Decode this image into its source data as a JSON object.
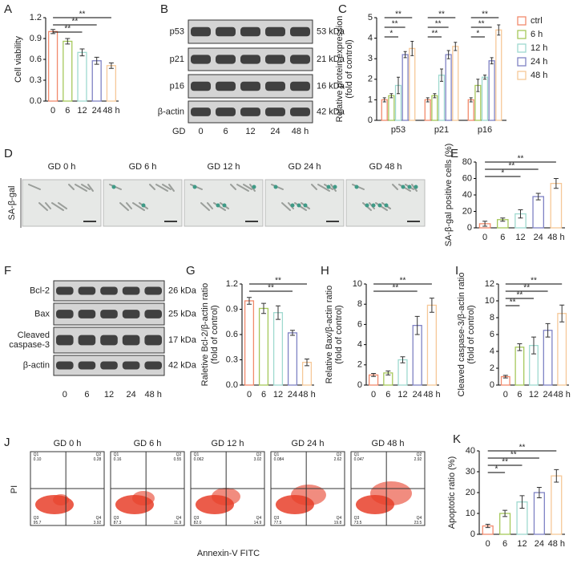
{
  "chart_data": [
    {
      "type": "bar",
      "panel": "A",
      "y_label": [
        "Cell viability"
      ],
      "categories": [
        "0",
        "6",
        "12",
        "24",
        "48 h"
      ],
      "values": [
        1.0,
        0.86,
        0.7,
        0.58,
        0.51
      ],
      "errors": [
        0.03,
        0.04,
        0.05,
        0.05,
        0.04
      ],
      "colors": [
        "#f28a6c",
        "#a6c85b",
        "#9fd9cf",
        "#7f82c4",
        "#f6c898"
      ],
      "ylim": [
        0,
        1.2
      ],
      "yticks": [
        {
          "value": 0,
          "label": "0.0"
        },
        0.3,
        0.6,
        0.9,
        1.2
      ],
      "significance": [
        {
          "from": 0,
          "to": 4,
          "label": "**"
        },
        {
          "from": 0,
          "to": 3,
          "label": "**"
        },
        {
          "from": 0,
          "to": 2,
          "label": "**"
        }
      ]
    },
    {
      "type": "grouped_bar",
      "panel": "C",
      "y_label": [
        "Relative protein expression",
        "(fold of control)"
      ],
      "categories": [
        "p53",
        "p21",
        "p16"
      ],
      "series": [
        {
          "name": "ctrl",
          "color": "#f28a6c",
          "values": [
            1.0,
            1.0,
            1.0
          ],
          "errors": [
            0.1,
            0.1,
            0.1
          ]
        },
        {
          "name": "6 h",
          "color": "#a6c85b",
          "values": [
            1.2,
            1.2,
            1.7
          ],
          "errors": [
            0.1,
            0.1,
            0.3
          ]
        },
        {
          "name": "12 h",
          "color": "#9fd9cf",
          "values": [
            1.7,
            2.2,
            2.1
          ],
          "errors": [
            0.4,
            0.3,
            0.1
          ]
        },
        {
          "name": "24 h",
          "color": "#7f82c4",
          "values": [
            3.2,
            3.2,
            2.9
          ],
          "errors": [
            0.15,
            0.2,
            0.15
          ]
        },
        {
          "name": "48 h",
          "color": "#f6c898",
          "values": [
            3.5,
            3.6,
            4.4
          ],
          "errors": [
            0.35,
            0.2,
            0.25
          ]
        }
      ],
      "ylim": [
        0,
        5
      ],
      "yticks": [
        0,
        1,
        2,
        3,
        4,
        5
      ],
      "significance": [
        {
          "group": 0,
          "from": 0,
          "to": 4,
          "label": "**"
        },
        {
          "group": 0,
          "from": 0,
          "to": 3,
          "label": "**"
        },
        {
          "group": 0,
          "from": 0,
          "to": 2,
          "label": "*"
        },
        {
          "group": 1,
          "from": 0,
          "to": 4,
          "label": "**"
        },
        {
          "group": 1,
          "from": 0,
          "to": 3,
          "label": "**"
        },
        {
          "group": 1,
          "from": 0,
          "to": 2,
          "label": "**"
        },
        {
          "group": 2,
          "from": 0,
          "to": 4,
          "label": "**"
        },
        {
          "group": 2,
          "from": 0,
          "to": 3,
          "label": "**"
        },
        {
          "group": 2,
          "from": 0,
          "to": 2,
          "label": "*"
        }
      ]
    },
    {
      "type": "bar",
      "panel": "E",
      "y_label": [
        "SA-β-gal positive cells (%)"
      ],
      "categories": [
        "0",
        "6",
        "12",
        "24",
        "48 h"
      ],
      "values": [
        5,
        10,
        17,
        38,
        54
      ],
      "errors": [
        3,
        2,
        5,
        4,
        6
      ],
      "colors": [
        "#f28a6c",
        "#a6c85b",
        "#9fd9cf",
        "#7f82c4",
        "#f6c898"
      ],
      "ylim": [
        0,
        80
      ],
      "yticks": [
        0,
        20,
        40,
        60,
        80
      ],
      "significance": [
        {
          "from": 0,
          "to": 4,
          "label": "**"
        },
        {
          "from": 0,
          "to": 3,
          "label": "**"
        },
        {
          "from": 0,
          "to": 2,
          "label": "*"
        }
      ]
    },
    {
      "type": "bar",
      "panel": "G",
      "y_label": [
        "Raletive Bcl-2/β-actin ratio",
        "(fold of control)"
      ],
      "categories": [
        "0",
        "6",
        "12",
        "24",
        "48 h"
      ],
      "values": [
        1.0,
        0.91,
        0.86,
        0.62,
        0.27
      ],
      "errors": [
        0.04,
        0.06,
        0.08,
        0.03,
        0.04
      ],
      "colors": [
        "#f28a6c",
        "#a6c85b",
        "#9fd9cf",
        "#7f82c4",
        "#f6c898"
      ],
      "ylim": [
        0,
        1.2
      ],
      "yticks": [
        {
          "value": 0,
          "label": "0.0"
        },
        0.3,
        0.6,
        0.9,
        1.2
      ],
      "significance": [
        {
          "from": 0,
          "to": 4,
          "label": "**"
        },
        {
          "from": 0,
          "to": 3,
          "label": "**"
        }
      ]
    },
    {
      "type": "bar",
      "panel": "H",
      "y_label": [
        "Relative Bax/β-actin ratio",
        "(fold of control)"
      ],
      "categories": [
        "0",
        "6",
        "12",
        "24",
        "48 h"
      ],
      "values": [
        1.0,
        1.2,
        2.5,
        5.9,
        7.9
      ],
      "errors": [
        0.15,
        0.2,
        0.3,
        0.9,
        0.7
      ],
      "colors": [
        "#f28a6c",
        "#a6c85b",
        "#9fd9cf",
        "#7f82c4",
        "#f6c898"
      ],
      "ylim": [
        0,
        10
      ],
      "yticks": [
        0,
        2,
        4,
        6,
        8,
        10
      ],
      "significance": [
        {
          "from": 0,
          "to": 4,
          "label": "**"
        },
        {
          "from": 0,
          "to": 3,
          "label": "**"
        }
      ]
    },
    {
      "type": "bar",
      "panel": "I",
      "y_label": [
        "Cleaved caspase-3/β-actin ratio",
        "(fold of control)"
      ],
      "categories": [
        "0",
        "6",
        "12",
        "24",
        "48 h"
      ],
      "values": [
        1.0,
        4.5,
        4.7,
        6.5,
        8.5
      ],
      "errors": [
        0.15,
        0.4,
        1.0,
        0.8,
        1.0
      ],
      "colors": [
        "#f28a6c",
        "#a6c85b",
        "#9fd9cf",
        "#7f82c4",
        "#f6c898"
      ],
      "ylim": [
        0,
        12
      ],
      "yticks": [
        0,
        2,
        4,
        6,
        8,
        10,
        12
      ],
      "significance": [
        {
          "from": 0,
          "to": 4,
          "label": "**"
        },
        {
          "from": 0,
          "to": 3,
          "label": "**"
        },
        {
          "from": 0,
          "to": 2,
          "label": "**"
        },
        {
          "from": 0,
          "to": 1,
          "label": "**"
        }
      ]
    },
    {
      "type": "bar",
      "panel": "K",
      "y_label": [
        "Apoptotic ratio (%)"
      ],
      "categories": [
        "0",
        "6",
        "12",
        "24",
        "48 h"
      ],
      "values": [
        4,
        10,
        15.5,
        20,
        28
      ],
      "errors": [
        0.8,
        1.5,
        3,
        2.5,
        3
      ],
      "colors": [
        "#f28a6c",
        "#a6c85b",
        "#9fd9cf",
        "#7f82c4",
        "#f6c898"
      ],
      "ylim": [
        0,
        40
      ],
      "yticks": [
        0,
        10,
        20,
        30,
        40
      ],
      "significance": [
        {
          "from": 0,
          "to": 4,
          "label": "**"
        },
        {
          "from": 0,
          "to": 3,
          "label": "**"
        },
        {
          "from": 0,
          "to": 2,
          "label": "**"
        },
        {
          "from": 0,
          "to": 1,
          "label": "*"
        }
      ]
    }
  ],
  "blots": [
    {
      "panel": "B",
      "rows": [
        {
          "label": "p53",
          "size": "53 kDa"
        },
        {
          "label": "p21",
          "size": "21 kDa"
        },
        {
          "label": "p16",
          "size": "16 kDa"
        },
        {
          "label": "β-actin",
          "size": "42 kDa"
        }
      ],
      "lane_title": "GD",
      "lanes": [
        "0",
        "6",
        "12",
        "24",
        "48 h"
      ]
    },
    {
      "panel": "F",
      "rows": [
        {
          "label": "Bcl-2",
          "size": "26 kDa"
        },
        {
          "label": "Bax",
          "size": "25 kDa"
        },
        {
          "label": [
            "Cleaved",
            "caspase-3"
          ],
          "size": "17 kDa"
        },
        {
          "label": "β-actin",
          "size": "42 kDa"
        }
      ],
      "lanes": [
        "0",
        "6",
        "12",
        "24",
        "48 h"
      ]
    }
  ],
  "micrographs": {
    "panel": "D",
    "stain": "SA-β-gal",
    "images": [
      "GD 0 h",
      "GD 6 h",
      "GD 12 h",
      "GD 24 h",
      "GD 48 h"
    ]
  },
  "flow_cytometry": {
    "panel": "J",
    "y_label": "PI",
    "x_label": "Annexin-V FITC",
    "quadrants": [
      "Q1",
      "Q2",
      "Q3",
      "Q4"
    ],
    "plots": [
      {
        "title": "GD 0 h",
        "values": [
          "0.10",
          "0.28",
          "95.7",
          "3.92"
        ]
      },
      {
        "title": "GD 6 h",
        "values": [
          "0.16",
          "0.55",
          "87.3",
          "11.9"
        ]
      },
      {
        "title": "GD 12 h",
        "values": [
          "0.062",
          "3.02",
          "82.0",
          "14.9"
        ]
      },
      {
        "title": "GD 24 h",
        "values": [
          "0.084",
          "2.62",
          "77.5",
          "19.8"
        ]
      },
      {
        "title": "GD 48 h",
        "values": [
          "0.047",
          "2.92",
          "73.5",
          "23.5"
        ]
      }
    ]
  }
}
